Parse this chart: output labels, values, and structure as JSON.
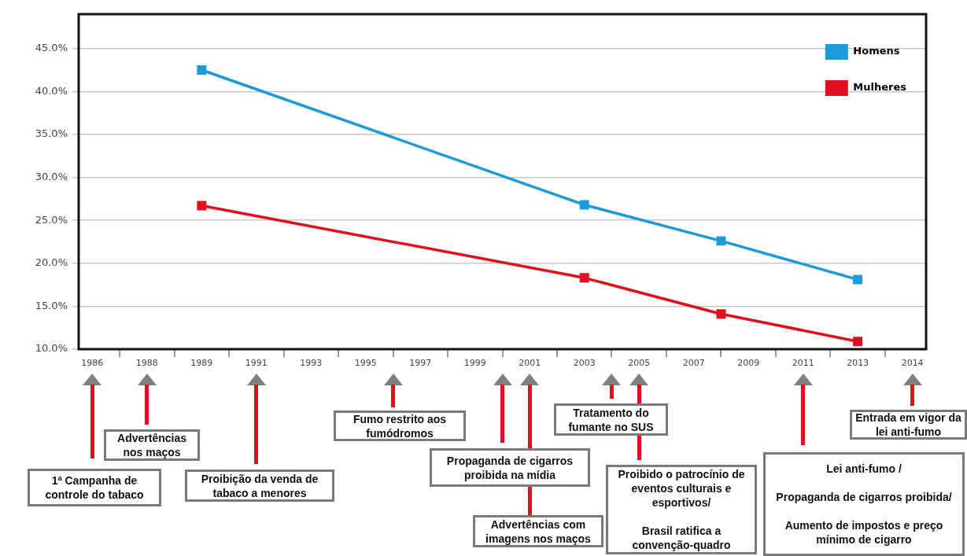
{
  "chart_data": {
    "type": "line",
    "categories": [
      "1986",
      null,
      "1988",
      null,
      "1989",
      null,
      "1991",
      null,
      "1993",
      null,
      "1995",
      null,
      "1997",
      null,
      "1999",
      null,
      "2001",
      null,
      "2003",
      null,
      "2005",
      null,
      "2007",
      null,
      "2009",
      null,
      "2011",
      null,
      "2013",
      null,
      "2014"
    ],
    "series": [
      {
        "name": "Homens",
        "color": "#1e9bd7",
        "values": [
          null,
          null,
          null,
          null,
          42.5,
          null,
          null,
          null,
          null,
          null,
          null,
          null,
          null,
          null,
          null,
          null,
          null,
          null,
          26.8,
          null,
          null,
          null,
          null,
          22.6,
          null,
          null,
          null,
          null,
          18.1,
          null,
          null
        ]
      },
      {
        "name": "Mulheres",
        "color": "#e0101e",
        "values": [
          null,
          null,
          null,
          null,
          26.7,
          null,
          null,
          null,
          null,
          null,
          null,
          null,
          null,
          null,
          null,
          null,
          null,
          null,
          18.3,
          null,
          null,
          null,
          null,
          14.1,
          null,
          null,
          null,
          null,
          10.9,
          null,
          null
        ]
      }
    ],
    "ylim": [
      10,
      49
    ],
    "yticks": [
      {
        "value": 10,
        "label": "10.0%"
      },
      {
        "value": 15,
        "label": "15.0%"
      },
      {
        "value": 20,
        "label": "20.0%"
      },
      {
        "value": 25,
        "label": "25.0%"
      },
      {
        "value": 30,
        "label": "30.0%"
      },
      {
        "value": 35,
        "label": "35.0%"
      },
      {
        "value": 40,
        "label": "40.0%"
      },
      {
        "value": 45,
        "label": "45.0%"
      }
    ],
    "grid": "y",
    "legend": "top right",
    "marker": "square",
    "annotations": [
      "1ª Campanha de controle do tabaco",
      "Advertências nos maços",
      "Proibição da venda de tabaco a menores",
      "Fumo restrito aos fumódromos",
      "Propaganda de cigarros proibida na mídia",
      "Advertências com imagens nos maços",
      "Tratamento do fumante no SUS",
      "Proibido o patrocínio de eventos culturais e esportivos/\n\nBrasil ratifica a convenção-quadro",
      "Lei anti-fumo /\n\nPropaganda de cigarros proibida/\n\nAumento de impostos e preço mínimo de cigarro",
      "Entrada em vigor da lei anti-fumo"
    ]
  }
}
